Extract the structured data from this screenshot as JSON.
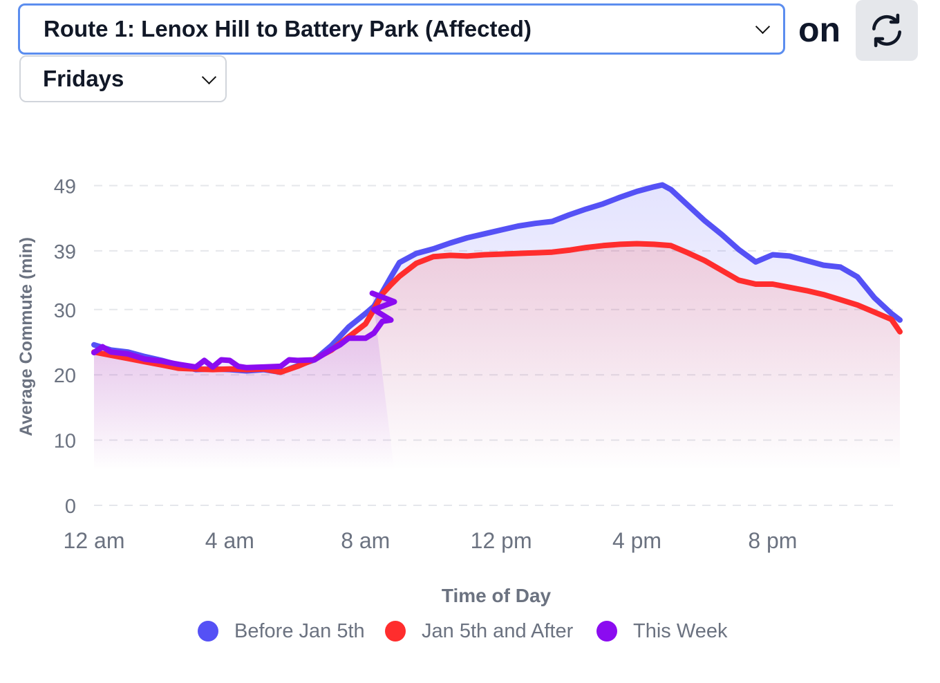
{
  "controls": {
    "route_label": "Route 1: Lenox Hill to Battery Park (Affected)",
    "connector": "on",
    "day_label": "Fridays",
    "refresh_icon": "refresh-icon",
    "dropdown_icon": "chevron-down-icon"
  },
  "chart_data": {
    "type": "line",
    "ylabel": "Average Commute (min)",
    "xlabel": "Time of Day",
    "yticks": [
      0,
      10,
      20,
      30,
      39,
      49
    ],
    "ylim": [
      0,
      50
    ],
    "xlim": [
      0,
      23.75
    ],
    "xticks": [
      {
        "value": 0,
        "label": "12 am"
      },
      {
        "value": 4,
        "label": "4 am"
      },
      {
        "value": 8,
        "label": "8 am"
      },
      {
        "value": 12,
        "label": "12 pm"
      },
      {
        "value": 16,
        "label": "4 pm"
      },
      {
        "value": 20,
        "label": "8 pm"
      }
    ],
    "grid": true,
    "legend_position": "bottom-center",
    "series": [
      {
        "name": "Before Jan 5th",
        "color": "#5551f5",
        "points": [
          [
            0,
            24.6
          ],
          [
            0.5,
            23.8
          ],
          [
            1,
            23.5
          ],
          [
            1.5,
            22.8
          ],
          [
            2,
            22.2
          ],
          [
            2.5,
            21.5
          ],
          [
            3,
            20.8
          ],
          [
            3.5,
            20.9
          ],
          [
            4,
            20.8
          ],
          [
            4.5,
            20.6
          ],
          [
            5,
            20.8
          ],
          [
            5.5,
            20.4
          ],
          [
            6,
            21.4
          ],
          [
            6.5,
            22.3
          ],
          [
            7,
            24.5
          ],
          [
            7.5,
            27.3
          ],
          [
            8,
            29.4
          ],
          [
            8.25,
            30.5
          ],
          [
            8.5,
            32.7
          ],
          [
            8.75,
            35
          ],
          [
            9,
            37.2
          ],
          [
            9.5,
            38.6
          ],
          [
            10,
            39.3
          ],
          [
            10.5,
            40.2
          ],
          [
            11,
            41
          ],
          [
            11.5,
            41.6
          ],
          [
            12,
            42.2
          ],
          [
            12.5,
            42.8
          ],
          [
            13,
            43.2
          ],
          [
            13.5,
            43.5
          ],
          [
            14,
            44.5
          ],
          [
            14.5,
            45.4
          ],
          [
            15,
            46.2
          ],
          [
            15.5,
            47.2
          ],
          [
            16,
            48.1
          ],
          [
            16.5,
            48.8
          ],
          [
            16.75,
            49.1
          ],
          [
            17,
            48.4
          ],
          [
            17.5,
            46
          ],
          [
            18,
            43.6
          ],
          [
            18.5,
            41.5
          ],
          [
            19,
            39.2
          ],
          [
            19.5,
            37.3
          ],
          [
            20,
            38.4
          ],
          [
            20.5,
            38.2
          ],
          [
            21,
            37.5
          ],
          [
            21.5,
            36.8
          ],
          [
            22,
            36.5
          ],
          [
            22.5,
            35
          ],
          [
            23,
            31.8
          ],
          [
            23.5,
            29.4
          ],
          [
            23.75,
            28.4
          ]
        ]
      },
      {
        "name": "Jan 5th and After",
        "color": "#ff2d2d",
        "points": [
          [
            0,
            23.5
          ],
          [
            0.5,
            23
          ],
          [
            1,
            22.5
          ],
          [
            1.5,
            22
          ],
          [
            2,
            21.5
          ],
          [
            2.5,
            21
          ],
          [
            3,
            20.9
          ],
          [
            3.5,
            20.8
          ],
          [
            4,
            20.9
          ],
          [
            4.5,
            20.8
          ],
          [
            5,
            20.9
          ],
          [
            5.5,
            20.4
          ],
          [
            6,
            21.3
          ],
          [
            6.5,
            22.4
          ],
          [
            7,
            23.8
          ],
          [
            7.5,
            25.8
          ],
          [
            8,
            27.8
          ],
          [
            8.25,
            30
          ],
          [
            8.5,
            32.4
          ],
          [
            8.75,
            33.8
          ],
          [
            9,
            35.1
          ],
          [
            9.5,
            37.1
          ],
          [
            10,
            38.1
          ],
          [
            10.5,
            38.3
          ],
          [
            11,
            38.2
          ],
          [
            11.5,
            38.4
          ],
          [
            12,
            38.5
          ],
          [
            12.5,
            38.6
          ],
          [
            13,
            38.7
          ],
          [
            13.5,
            38.8
          ],
          [
            14,
            39.1
          ],
          [
            14.5,
            39.5
          ],
          [
            15,
            39.8
          ],
          [
            15.5,
            40
          ],
          [
            16,
            40.1
          ],
          [
            16.5,
            40
          ],
          [
            17,
            39.8
          ],
          [
            17.5,
            38.7
          ],
          [
            18,
            37.5
          ],
          [
            18.5,
            36
          ],
          [
            19,
            34.5
          ],
          [
            19.5,
            33.9
          ],
          [
            20,
            33.9
          ],
          [
            20.5,
            33.4
          ],
          [
            21,
            32.9
          ],
          [
            21.5,
            32.3
          ],
          [
            22,
            31.5
          ],
          [
            22.5,
            30.7
          ],
          [
            23,
            29.6
          ],
          [
            23.5,
            28.5
          ],
          [
            23.75,
            26.6
          ]
        ]
      },
      {
        "name": "This Week",
        "color": "#8b0cf0",
        "points": [
          [
            0,
            23.4
          ],
          [
            0.25,
            24.3
          ],
          [
            0.5,
            23.5
          ],
          [
            1,
            23.2
          ],
          [
            1.5,
            22.4
          ],
          [
            2,
            22.1
          ],
          [
            2.5,
            21.6
          ],
          [
            3,
            21.2
          ],
          [
            3.25,
            22.2
          ],
          [
            3.5,
            21.2
          ],
          [
            3.75,
            22.3
          ],
          [
            4,
            22.2
          ],
          [
            4.25,
            21.3
          ],
          [
            4.5,
            21.1
          ],
          [
            5,
            21.2
          ],
          [
            5.5,
            21.3
          ],
          [
            5.75,
            22.3
          ],
          [
            6,
            22.2
          ],
          [
            6.5,
            22.3
          ],
          [
            7,
            23.9
          ],
          [
            7.25,
            24.6
          ],
          [
            7.5,
            25.6
          ],
          [
            8,
            25.6
          ],
          [
            8.25,
            26.4
          ],
          [
            8.5,
            28.2
          ],
          [
            8.75,
            28.4
          ],
          [
            8.25,
            30
          ],
          [
            8.85,
            31.2
          ],
          [
            8.2,
            32.5
          ]
        ]
      }
    ]
  }
}
